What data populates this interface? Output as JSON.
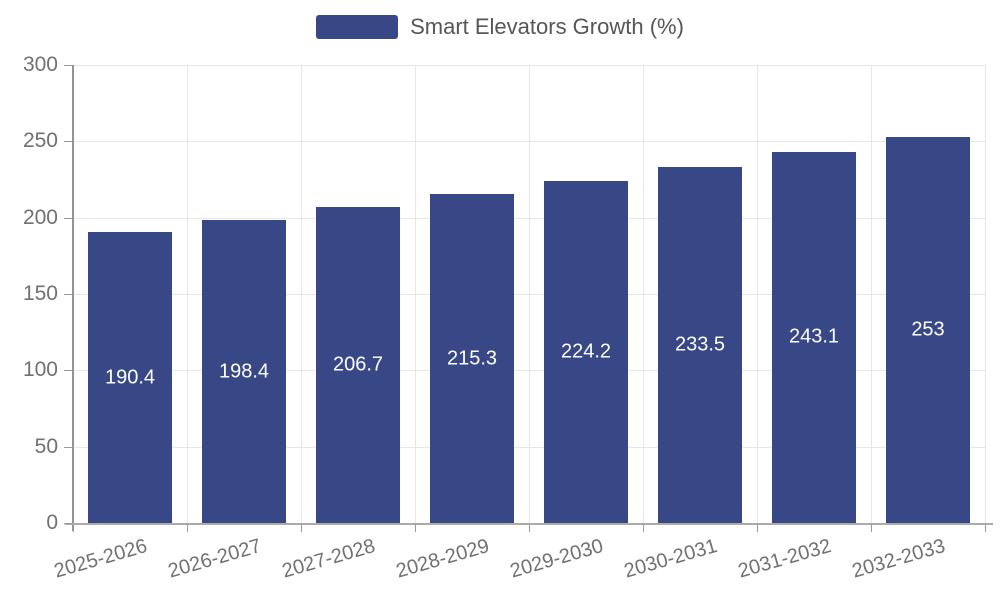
{
  "legend": {
    "label": "Smart Elevators Growth (%)",
    "position": "top"
  },
  "colors": {
    "bar": "#384785",
    "value_label": "#ffffff",
    "axis_label": "#717171",
    "legend_text": "#555657",
    "gridline": "#e4e6eb",
    "axis_line": "#9a9a9a"
  },
  "chart_data": {
    "type": "bar",
    "title": "Smart Elevators Growth (%)",
    "categories": [
      "2025-2026",
      "2026-2027",
      "2027-2028",
      "2028-2029",
      "2029-2030",
      "2030-2031",
      "2031-2032",
      "2032-2033"
    ],
    "values": [
      190.4,
      198.4,
      206.7,
      215.3,
      224.2,
      233.5,
      243.1,
      253
    ],
    "value_labels": [
      "190.4",
      "198.4",
      "206.7",
      "215.3",
      "224.2",
      "233.5",
      "243.1",
      "253"
    ],
    "xlabel": "",
    "ylabel": "",
    "ylim": [
      0,
      300
    ],
    "yticks": [
      0,
      50,
      100,
      150,
      200,
      250,
      300
    ],
    "grid": true,
    "legend_position": "top",
    "bar_color": "#384785",
    "value_label_position": "inside-middle",
    "x_label_rotation_deg": -16
  }
}
